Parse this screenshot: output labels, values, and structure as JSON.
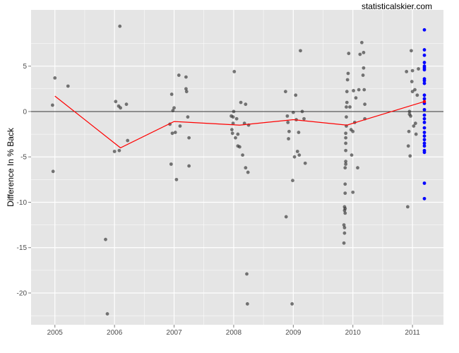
{
  "watermark": "statisticalskier.com",
  "chart_data": {
    "type": "scatter",
    "title": "",
    "xlabel": "",
    "ylabel": "Difference In % Back",
    "xlim": [
      2004.6,
      2011.52
    ],
    "ylim": [
      -23.5,
      11.2
    ],
    "x_ticks": [
      2005,
      2006,
      2007,
      2008,
      2009,
      2010,
      2011
    ],
    "x_tick_labels": [
      "2005",
      "2006",
      "2007",
      "2008",
      "2009",
      "2010",
      "2011"
    ],
    "y_ticks": [
      5,
      0,
      -5,
      -10,
      -15,
      -20
    ],
    "y_tick_labels": [
      "5",
      "0",
      "-5",
      "-10",
      "-15",
      "-20"
    ],
    "reference_line": 0,
    "grid": true,
    "colors": {
      "panel": "#e5e5e5",
      "grid": "#ffffff",
      "points": "#333333",
      "highlight": "#0000ff",
      "trend": "#ff0000",
      "zero_line": "#333333"
    },
    "series": [
      {
        "x": [
          2004.96,
          2004.97,
          2005.0,
          2005.22,
          2005.85,
          2005.88,
          2006.0,
          2006.02,
          2006.07,
          2006.08,
          2006.09,
          2006.1,
          2006.2,
          2006.22,
          2006.93,
          2006.95,
          2006.96,
          2006.97,
          2006.98,
          2007.0,
          2007.02,
          2007.04,
          2007.08,
          2007.1,
          2007.2,
          2007.2,
          2007.21,
          2007.23,
          2007.25,
          2007.25,
          2007.96,
          2007.97,
          2007.98,
          2007.99,
          2007.99,
          2008.0,
          2008.01,
          2008.03,
          2008.05,
          2008.07,
          2008.07,
          2008.1,
          2008.12,
          2008.15,
          2008.18,
          2008.2,
          2008.2,
          2008.22,
          2008.23,
          2008.24,
          2008.25,
          2008.87,
          2008.88,
          2008.9,
          2008.91,
          2008.92,
          2008.93,
          2008.98,
          2008.99,
          2009.0,
          2009.02,
          2009.04,
          2009.05,
          2009.07,
          2009.09,
          2009.1,
          2009.12,
          2009.15,
          2009.18,
          2009.2,
          2009.85,
          2009.85,
          2009.86,
          2009.86,
          2009.86,
          2009.86,
          2009.87,
          2009.87,
          2009.87,
          2009.87,
          2009.87,
          2009.88,
          2009.88,
          2009.88,
          2009.88,
          2009.88,
          2009.88,
          2009.89,
          2009.89,
          2009.89,
          2009.9,
          2009.9,
          2009.91,
          2009.92,
          2009.93,
          2009.95,
          2009.97,
          2009.98,
          2010.0,
          2010.0,
          2010.01,
          2010.03,
          2010.05,
          2010.08,
          2010.1,
          2010.12,
          2010.15,
          2010.17,
          2010.18,
          2010.18,
          2010.19,
          2010.2,
          2010.2,
          2010.9,
          2010.92,
          2010.93,
          2010.94,
          2010.95,
          2010.95,
          2010.96,
          2010.97,
          2010.98,
          2010.99,
          2011.0,
          2011.0,
          2011.02,
          2011.04,
          2011.05,
          2011.06,
          2011.08,
          2011.1
        ],
        "y": [
          0.7,
          -6.6,
          3.7,
          2.8,
          -14.1,
          -22.3,
          -4.4,
          1.1,
          0.6,
          -4.3,
          9.4,
          0.4,
          0.8,
          -3.2,
          -1.4,
          -5.8,
          1.9,
          -2.4,
          0.1,
          0.4,
          -2.3,
          -7.5,
          4.0,
          -1.6,
          3.8,
          2.5,
          2.2,
          -0.6,
          -2.9,
          -6.0,
          -0.5,
          -2.0,
          -2.4,
          -1.3,
          -0.6,
          0.0,
          4.4,
          -2.9,
          -0.8,
          -3.8,
          -2.5,
          -3.9,
          1.0,
          -4.8,
          -1.3,
          0.8,
          -6.2,
          -17.9,
          -21.2,
          -6.7,
          -1.5,
          2.2,
          -11.6,
          -0.5,
          -1.2,
          -3.0,
          -2.2,
          -21.2,
          -7.6,
          -0.1,
          -5.0,
          1.8,
          -0.9,
          -4.4,
          -2.3,
          -4.8,
          6.7,
          0.0,
          -0.8,
          -5.7,
          -14.5,
          -12.5,
          -13.4,
          -12.8,
          -10.5,
          -10.9,
          -11.2,
          -10.7,
          -9.0,
          -8.0,
          -6.2,
          -5.8,
          -5.5,
          -4.3,
          -3.5,
          -2.9,
          -2.4,
          -1.6,
          -0.6,
          0.5,
          1.0,
          2.2,
          3.5,
          4.2,
          6.4,
          0.5,
          -2.0,
          -4.8,
          -8.9,
          -2.2,
          2.3,
          -1.2,
          1.5,
          -6.2,
          2.4,
          6.3,
          7.6,
          4.0,
          4.8,
          6.5,
          2.4,
          0.8,
          -0.8,
          4.4,
          -10.5,
          -3.8,
          -2.2,
          -0.3,
          0.0,
          -4.9,
          -0.5,
          6.7,
          3.3,
          2.2,
          4.5,
          -1.6,
          2.4,
          -1.3,
          -2.5,
          1.8,
          4.7
        ]
      },
      {
        "x": [
          2011.2,
          2011.2,
          2011.2,
          2011.2,
          2011.2,
          2011.2,
          2011.2,
          2011.2,
          2011.2,
          2011.2,
          2011.2,
          2011.2,
          2011.2,
          2011.2,
          2011.2,
          2011.2,
          2011.2,
          2011.2,
          2011.2,
          2011.2,
          2011.2,
          2011.2,
          2011.2,
          2011.2,
          2011.2,
          2011.2,
          2011.2
        ],
        "y": [
          9.0,
          6.8,
          6.2,
          5.4,
          5.0,
          4.6,
          4.8,
          3.6,
          3.4,
          3.1,
          1.8,
          1.4,
          0.9,
          0.2,
          -0.4,
          -0.8,
          -1.2,
          -1.8,
          -2.3,
          -2.7,
          -3.1,
          -3.5,
          -3.8,
          -4.3,
          -4.5,
          -7.9,
          -9.6
        ]
      },
      {
        "x": [
          2005.0,
          2006.1,
          2007.0,
          2008.1,
          2009.0,
          2009.9,
          2011.2
        ],
        "y": [
          1.7,
          -4.0,
          -1.1,
          -1.5,
          -0.9,
          -1.5,
          1.1
        ]
      }
    ]
  }
}
